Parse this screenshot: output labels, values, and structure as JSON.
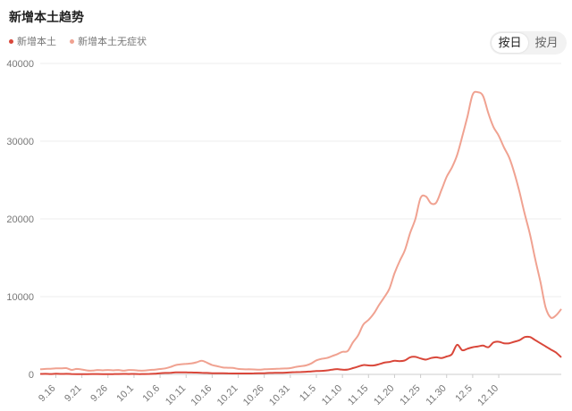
{
  "header": {
    "title": "新增本土趋势"
  },
  "toggle": {
    "day_label": "按日",
    "month_label": "按月",
    "active": "day"
  },
  "colors": {
    "local": "#d9473a",
    "asymptomatic": "#f0a291",
    "grid": "#eeeeee",
    "axis": "#cccccc"
  },
  "chart_data": {
    "type": "line",
    "title": "新增本土趋势",
    "xlabel": "",
    "ylabel": "",
    "ylim": [
      0,
      40000
    ],
    "yticks": [
      0,
      10000,
      20000,
      30000,
      40000
    ],
    "xticks": [
      "9.16",
      "9.21",
      "9.26",
      "10.1",
      "10.6",
      "10.11",
      "10.16",
      "10.21",
      "10.26",
      "10.31",
      "11.5",
      "11.10",
      "11.15",
      "11.20",
      "11.25",
      "11.30",
      "12.5",
      "12.10"
    ],
    "legend_position": "top-left",
    "grid": true,
    "x_start": "9.13",
    "series": [
      {
        "name": "新增本土",
        "values": [
          60,
          70,
          50,
          80,
          60,
          70,
          50,
          40,
          30,
          40,
          50,
          50,
          40,
          30,
          40,
          50,
          60,
          50,
          60,
          40,
          50,
          60,
          80,
          150,
          180,
          200,
          260,
          250,
          260,
          240,
          230,
          200,
          180,
          150,
          150,
          140,
          130,
          120,
          110,
          110,
          110,
          130,
          140,
          150,
          180,
          190,
          200,
          220,
          250,
          290,
          300,
          330,
          380,
          420,
          450,
          500,
          600,
          680,
          600,
          620,
          800,
          1000,
          1200,
          1150,
          1150,
          1300,
          1500,
          1600,
          1750,
          1700,
          1800,
          2200,
          2250,
          2050,
          1900,
          2100,
          2200,
          2100,
          2300,
          2600,
          3800,
          3100,
          3300,
          3500,
          3600,
          3700,
          3500,
          4100,
          4200,
          4000,
          4000,
          4200,
          4400,
          4800,
          4800,
          4400,
          4000,
          3600,
          3200,
          2800,
          2200
        ]
      },
      {
        "name": "新增本土无症状",
        "values": [
          650,
          700,
          720,
          770,
          780,
          800,
          580,
          700,
          620,
          500,
          480,
          560,
          520,
          560,
          520,
          560,
          470,
          560,
          550,
          480,
          480,
          560,
          610,
          690,
          770,
          950,
          1200,
          1300,
          1350,
          1400,
          1550,
          1750,
          1500,
          1200,
          1050,
          900,
          850,
          830,
          700,
          650,
          650,
          630,
          600,
          650,
          680,
          700,
          740,
          760,
          800,
          950,
          1050,
          1150,
          1400,
          1800,
          2000,
          2100,
          2350,
          2600,
          2900,
          3000,
          4100,
          5000,
          6400,
          7000,
          7800,
          8900,
          9900,
          11000,
          13000,
          14600,
          16000,
          18200,
          20000,
          22700,
          22900,
          22000,
          22100,
          23700,
          25400,
          26600,
          28200,
          30600,
          33200,
          36000,
          36300,
          35800,
          33600,
          31800,
          30700,
          29200,
          27900,
          25900,
          23400,
          20600,
          18000,
          14800,
          11900,
          8600,
          7300,
          7600,
          8400
        ]
      }
    ]
  }
}
